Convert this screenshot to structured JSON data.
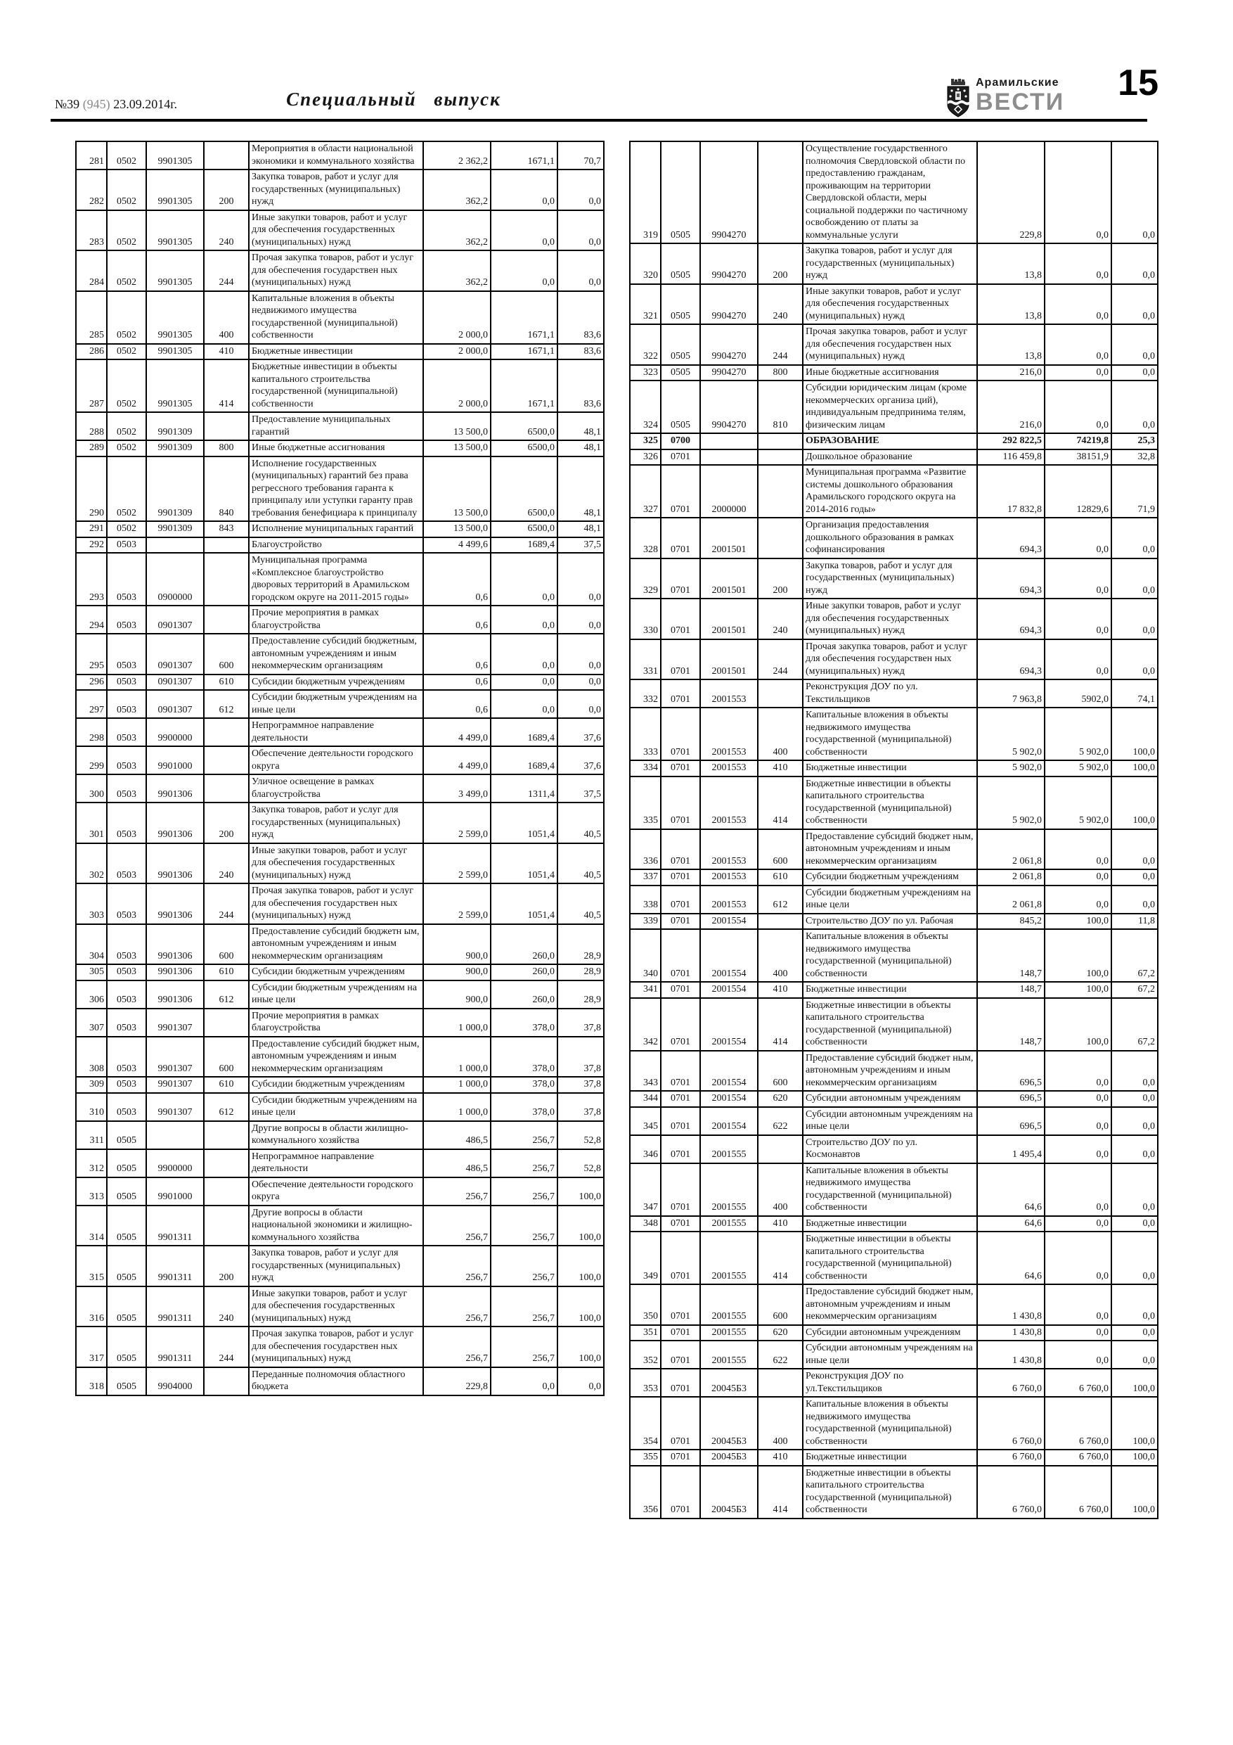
{
  "header": {
    "issue_no": "№39",
    "issue_edition": "(945)",
    "issue_date": "23.09.2014г.",
    "title": "Специальный выпуск",
    "brand_top": "Арамильские",
    "brand_bottom": "ВЕСТИ",
    "page_number": "15"
  },
  "tables": {
    "columns": [
      "num",
      "section",
      "target_article",
      "expense_type",
      "name",
      "plan",
      "fact",
      "percent"
    ],
    "bold_rows": [
      "325"
    ],
    "left": {
      "rows": [
        [
          "281",
          "0502",
          "9901305",
          "",
          "Мероприятия в области национальной экономики и коммунального хозяйства",
          "2 362,2",
          "1671,1",
          "70,7"
        ],
        [
          "282",
          "0502",
          "9901305",
          "200",
          "Закупка товаров, работ и услуг для государственных (муниципальных) нужд",
          "362,2",
          "0,0",
          "0,0"
        ],
        [
          "283",
          "0502",
          "9901305",
          "240",
          "Иные закупки товаров, работ и услуг для обеспечения государственных (муниципальных) нужд",
          "362,2",
          "0,0",
          "0,0"
        ],
        [
          "284",
          "0502",
          "9901305",
          "244",
          "Прочая закупка товаров, работ и услуг для обеспечения государствен ных (муниципальных) нужд",
          "362,2",
          "0,0",
          "0,0"
        ],
        [
          "285",
          "0502",
          "9901305",
          "400",
          "Капитальные вложения в объекты недвижимого имущества государственной (муниципальной) собственности",
          "2 000,0",
          "1671,1",
          "83,6"
        ],
        [
          "286",
          "0502",
          "9901305",
          "410",
          "Бюджетные инвестиции",
          "2 000,0",
          "1671,1",
          "83,6"
        ],
        [
          "287",
          "0502",
          "9901305",
          "414",
          "Бюджетные инвестиции в объекты капитального строительства государственной (муниципальной) собственности",
          "2 000,0",
          "1671,1",
          "83,6"
        ],
        [
          "288",
          "0502",
          "9901309",
          "",
          "Предоставление муниципальных гарантий",
          "13 500,0",
          "6500,0",
          "48,1"
        ],
        [
          "289",
          "0502",
          "9901309",
          "800",
          "Иные бюджетные ассигнования",
          "13 500,0",
          "6500,0",
          "48,1"
        ],
        [
          "290",
          "0502",
          "9901309",
          "840",
          "Исполнение государственных (муниципальных) гарантий без права регрессного требования гаранта к принципалу или уступки гаранту прав требования бенефициара к принципалу",
          "13 500,0",
          "6500,0",
          "48,1"
        ],
        [
          "291",
          "0502",
          "9901309",
          "843",
          "Исполнение муниципальных гарантий",
          "13 500,0",
          "6500,0",
          "48,1"
        ],
        [
          "292",
          "0503",
          "",
          "",
          "Благоустройство",
          "4 499,6",
          "1689,4",
          "37,5"
        ],
        [
          "293",
          "0503",
          "0900000",
          "",
          "Муниципальная программа «Комплексное благоустройство дворовых территорий в Арамильском городском округе на 2011-2015 годы»",
          "0,6",
          "0,0",
          "0,0"
        ],
        [
          "294",
          "0503",
          "0901307",
          "",
          "Прочие мероприятия в рамках благоустройства",
          "0,6",
          "0,0",
          "0,0"
        ],
        [
          "295",
          "0503",
          "0901307",
          "600",
          "Предоставление субсидий бюджетным, автономным учреждениям и иным некоммерческим организациям",
          "0,6",
          "0,0",
          "0,0"
        ],
        [
          "296",
          "0503",
          "0901307",
          "610",
          "Субсидии бюджетным учреждениям",
          "0,6",
          "0,0",
          "0,0"
        ],
        [
          "297",
          "0503",
          "0901307",
          "612",
          "Субсидии бюджетным учреждениям на иные цели",
          "0,6",
          "0,0",
          "0,0"
        ],
        [
          "298",
          "0503",
          "9900000",
          "",
          "Непрограммное направление деятельности",
          "4 499,0",
          "1689,4",
          "37,6"
        ],
        [
          "299",
          "0503",
          "9901000",
          "",
          "Обеспечение деятельности городского округа",
          "4 499,0",
          "1689,4",
          "37,6"
        ],
        [
          "300",
          "0503",
          "9901306",
          "",
          "Уличное освещение в рамках благоустройства",
          "3 499,0",
          "1311,4",
          "37,5"
        ],
        [
          "301",
          "0503",
          "9901306",
          "200",
          "Закупка товаров, работ и услуг для государственных (муниципальных) нужд",
          "2 599,0",
          "1051,4",
          "40,5"
        ],
        [
          "302",
          "0503",
          "9901306",
          "240",
          "Иные закупки товаров, работ и услуг для обеспечения государственных (муниципальных) нужд",
          "2 599,0",
          "1051,4",
          "40,5"
        ],
        [
          "303",
          "0503",
          "9901306",
          "244",
          "Прочая закупка товаров, работ и услуг для обеспечения государствен ных (муниципальных) нужд",
          "2 599,0",
          "1051,4",
          "40,5"
        ],
        [
          "304",
          "0503",
          "9901306",
          "600",
          "Предоставление субсидий бюджетн ым, автономным учреждениям и иным некоммерческим организациям",
          "900,0",
          "260,0",
          "28,9"
        ],
        [
          "305",
          "0503",
          "9901306",
          "610",
          "Субсидии бюджетным учреждениям",
          "900,0",
          "260,0",
          "28,9"
        ],
        [
          "306",
          "0503",
          "9901306",
          "612",
          "Субсидии бюджетным учреждениям на иные цели",
          "900,0",
          "260,0",
          "28,9"
        ],
        [
          "307",
          "0503",
          "9901307",
          "",
          "Прочие мероприятия в рамках благоустройства",
          "1 000,0",
          "378,0",
          "37,8"
        ],
        [
          "308",
          "0503",
          "9901307",
          "600",
          "Предоставление субсидий бюджет ным, автономным учреждениям и иным некоммерческим организациям",
          "1 000,0",
          "378,0",
          "37,8"
        ],
        [
          "309",
          "0503",
          "9901307",
          "610",
          "Субсидии бюджетным учреждениям",
          "1 000,0",
          "378,0",
          "37,8"
        ],
        [
          "310",
          "0503",
          "9901307",
          "612",
          "Субсидии бюджетным учреждениям на иные цели",
          "1 000,0",
          "378,0",
          "37,8"
        ],
        [
          "311",
          "0505",
          "",
          "",
          "Другие вопросы в области жилищно-коммунального хозяйства",
          "486,5",
          "256,7",
          "52,8"
        ],
        [
          "312",
          "0505",
          "9900000",
          "",
          "Непрограммное направление деятельности",
          "486,5",
          "256,7",
          "52,8"
        ],
        [
          "313",
          "0505",
          "9901000",
          "",
          "Обеспечение деятельности городского округа",
          "256,7",
          "256,7",
          "100,0"
        ],
        [
          "314",
          "0505",
          "9901311",
          "",
          "Другие вопросы в области национальной экономики и жилищно-коммунального хозяйства",
          "256,7",
          "256,7",
          "100,0"
        ],
        [
          "315",
          "0505",
          "9901311",
          "200",
          "Закупка товаров, работ и услуг для государственных (муниципальных) нужд",
          "256,7",
          "256,7",
          "100,0"
        ],
        [
          "316",
          "0505",
          "9901311",
          "240",
          "Иные закупки товаров, работ и услуг для обеспечения государственных (муниципальных) нужд",
          "256,7",
          "256,7",
          "100,0"
        ],
        [
          "317",
          "0505",
          "9901311",
          "244",
          "Прочая закупка товаров, работ и услуг для обеспечения государствен ных (муниципальных) нужд",
          "256,7",
          "256,7",
          "100,0"
        ],
        [
          "318",
          "0505",
          "9904000",
          "",
          "Переданные полномочия областного бюджета",
          "229,8",
          "0,0",
          "0,0"
        ]
      ]
    },
    "right": {
      "rows": [
        [
          "319",
          "0505",
          "9904270",
          "",
          "Осуществление государственного полномочия Свердловской области по предоставлению гражданам, проживающим на территории Свердловской области, меры социальной поддержки по частичному освобождению от платы за коммунальные услуги",
          "229,8",
          "0,0",
          "0,0"
        ],
        [
          "320",
          "0505",
          "9904270",
          "200",
          "Закупка товаров, работ и услуг для государственных (муниципальных) нужд",
          "13,8",
          "0,0",
          "0,0"
        ],
        [
          "321",
          "0505",
          "9904270",
          "240",
          "Иные закупки товаров, работ и услуг для обеспечения государственных (муниципальных) нужд",
          "13,8",
          "0,0",
          "0,0"
        ],
        [
          "322",
          "0505",
          "9904270",
          "244",
          "Прочая закупка товаров, работ и услуг для обеспечения государствен ных (муниципальных) нужд",
          "13,8",
          "0,0",
          "0,0"
        ],
        [
          "323",
          "0505",
          "9904270",
          "800",
          "Иные бюджетные ассигнования",
          "216,0",
          "0,0",
          "0,0"
        ],
        [
          "324",
          "0505",
          "9904270",
          "810",
          "Субсидии юридическим лицам (кроме некоммерческих организа ций), индивидуальным предпринима телям, физическим лицам",
          "216,0",
          "0,0",
          "0,0"
        ],
        [
          "325",
          "0700",
          "",
          "",
          "ОБРАЗОВАНИЕ",
          "292 822,5",
          "74219,8",
          "25,3"
        ],
        [
          "326",
          "0701",
          "",
          "",
          "Дошкольное образование",
          "116 459,8",
          "38151,9",
          "32,8"
        ],
        [
          "327",
          "0701",
          "2000000",
          "",
          "Муниципальная программа «Развитие системы дошкольного образования Арамильского городского округа на 2014-2016 годы»",
          "17 832,8",
          "12829,6",
          "71,9"
        ],
        [
          "328",
          "0701",
          "2001501",
          "",
          "Организация предоставления дошкольного образования в рамках софинансирования",
          "694,3",
          "0,0",
          "0,0"
        ],
        [
          "329",
          "0701",
          "2001501",
          "200",
          "Закупка товаров, работ и услуг для государственных (муниципальных) нужд",
          "694,3",
          "0,0",
          "0,0"
        ],
        [
          "330",
          "0701",
          "2001501",
          "240",
          "Иные закупки товаров, работ и услуг для обеспечения государственных (муниципальных) нужд",
          "694,3",
          "0,0",
          "0,0"
        ],
        [
          "331",
          "0701",
          "2001501",
          "244",
          "Прочая закупка товаров, работ и услуг для обеспечения государствен ных (муниципальных) нужд",
          "694,3",
          "0,0",
          "0,0"
        ],
        [
          "332",
          "0701",
          "2001553",
          "",
          "Реконструкция ДОУ по ул. Текстильщиков",
          "7 963,8",
          "5902,0",
          "74,1"
        ],
        [
          "333",
          "0701",
          "2001553",
          "400",
          "Капитальные вложения в объекты недвижимого имущества государственной (муниципальной) собственности",
          "5 902,0",
          "5 902,0",
          "100,0"
        ],
        [
          "334",
          "0701",
          "2001553",
          "410",
          "Бюджетные инвестиции",
          "5 902,0",
          "5 902,0",
          "100,0"
        ],
        [
          "335",
          "0701",
          "2001553",
          "414",
          "Бюджетные инвестиции в объекты капитального строительства государственной (муниципальной) собственности",
          "5 902,0",
          "5 902,0",
          "100,0"
        ],
        [
          "336",
          "0701",
          "2001553",
          "600",
          "Предоставление субсидий бюджет ным, автономным учреждениям и иным некоммерческим организациям",
          "2 061,8",
          "0,0",
          "0,0"
        ],
        [
          "337",
          "0701",
          "2001553",
          "610",
          "Субсидии бюджетным учреждениям",
          "2 061,8",
          "0,0",
          "0,0"
        ],
        [
          "338",
          "0701",
          "2001553",
          "612",
          "Субсидии бюджетным учреждениям на иные цели",
          "2 061,8",
          "0,0",
          "0,0"
        ],
        [
          "339",
          "0701",
          "2001554",
          "",
          "Строительство ДОУ по ул. Рабочая",
          "845,2",
          "100,0",
          "11,8"
        ],
        [
          "340",
          "0701",
          "2001554",
          "400",
          "Капитальные вложения в объекты недвижимого имущества государственной (муниципальной) собственности",
          "148,7",
          "100,0",
          "67,2"
        ],
        [
          "341",
          "0701",
          "2001554",
          "410",
          "Бюджетные инвестиции",
          "148,7",
          "100,0",
          "67,2"
        ],
        [
          "342",
          "0701",
          "2001554",
          "414",
          "Бюджетные инвестиции в объекты капитального строительства государственной (муниципальной) собственности",
          "148,7",
          "100,0",
          "67,2"
        ],
        [
          "343",
          "0701",
          "2001554",
          "600",
          "Предоставление субсидий бюджет ным, автономным учреждениям и иным некоммерческим организациям",
          "696,5",
          "0,0",
          "0,0"
        ],
        [
          "344",
          "0701",
          "2001554",
          "620",
          "Субсидии автономным учреждениям",
          "696,5",
          "0,0",
          "0,0"
        ],
        [
          "345",
          "0701",
          "2001554",
          "622",
          "Субсидии автономным учреждениям на иные цели",
          "696,5",
          "0,0",
          "0,0"
        ],
        [
          "346",
          "0701",
          "2001555",
          "",
          "Строительство ДОУ по ул. Космонавтов",
          "1 495,4",
          "0,0",
          "0,0"
        ],
        [
          "347",
          "0701",
          "2001555",
          "400",
          "Капитальные вложения в объекты недвижимого имущества государственной (муниципальной) собственности",
          "64,6",
          "0,0",
          "0,0"
        ],
        [
          "348",
          "0701",
          "2001555",
          "410",
          "Бюджетные инвестиции",
          "64,6",
          "0,0",
          "0,0"
        ],
        [
          "349",
          "0701",
          "2001555",
          "414",
          "Бюджетные инвестиции в объекты капитального строительства государственной (муниципальной) собственности",
          "64,6",
          "0,0",
          "0,0"
        ],
        [
          "350",
          "0701",
          "2001555",
          "600",
          "Предоставление субсидий бюджет ным, автономным учреждениям и иным некоммерческим организациям",
          "1 430,8",
          "0,0",
          "0,0"
        ],
        [
          "351",
          "0701",
          "2001555",
          "620",
          "Субсидии автономным учреждениям",
          "1 430,8",
          "0,0",
          "0,0"
        ],
        [
          "352",
          "0701",
          "2001555",
          "622",
          "Субсидии автономным учреждениям на иные цели",
          "1 430,8",
          "0,0",
          "0,0"
        ],
        [
          "353",
          "0701",
          "20045Б3",
          "",
          "Реконструкция ДОУ по ул.Текстильщиков",
          "6 760,0",
          "6 760,0",
          "100,0"
        ],
        [
          "354",
          "0701",
          "20045Б3",
          "400",
          "Капитальные вложения в объекты недвижимого имущества государственной (муниципальной) собственности",
          "6 760,0",
          "6 760,0",
          "100,0"
        ],
        [
          "355",
          "0701",
          "20045Б3",
          "410",
          "Бюджетные инвестиции",
          "6 760,0",
          "6 760,0",
          "100,0"
        ],
        [
          "356",
          "0701",
          "20045Б3",
          "414",
          "Бюджетные инвестиции в объекты капитального строительства государственной (муниципальной) собственности",
          "6 760,0",
          "6 760,0",
          "100,0"
        ]
      ]
    }
  }
}
